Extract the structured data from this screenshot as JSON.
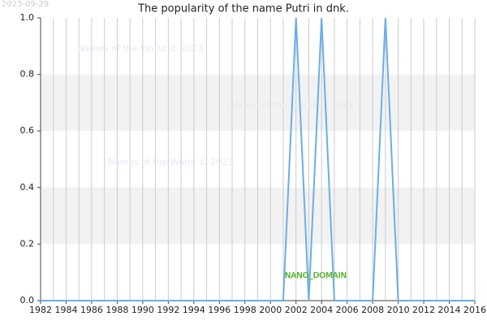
{
  "chart_data": {
    "type": "line",
    "title": "The popularity of the name Putri in dnk.",
    "date_stamp": "2023-09-29",
    "watermarks": [
      "Names of the World © 2023",
      "Names of the World © 2023",
      "Names of the World © 2023"
    ],
    "annotation": "NANO_DOMAIN",
    "x": [
      1982,
      1983,
      1984,
      1985,
      1986,
      1987,
      1988,
      1989,
      1990,
      1991,
      1992,
      1993,
      1994,
      1995,
      1996,
      1997,
      1998,
      1999,
      2000,
      2001,
      2002,
      2003,
      2004,
      2005,
      2006,
      2007,
      2008,
      2009,
      2010,
      2011,
      2012,
      2013,
      2014,
      2015,
      2016
    ],
    "series": [
      {
        "name": "Putri",
        "color": "#6aaee8",
        "values": [
          0,
          0,
          0,
          0,
          0,
          0,
          0,
          0,
          0,
          0,
          0,
          0,
          0,
          0,
          0,
          0,
          0,
          0,
          0,
          0,
          1,
          0,
          1,
          0,
          0,
          0,
          0,
          1,
          0,
          0,
          0,
          0,
          0,
          0,
          0
        ]
      }
    ],
    "xlim": [
      1982,
      2016
    ],
    "xticks": [
      1982,
      1984,
      1986,
      1988,
      1990,
      1992,
      1994,
      1996,
      1998,
      2000,
      2002,
      2004,
      2006,
      2008,
      2010,
      2012,
      2014,
      2016
    ],
    "ylim": [
      0,
      1
    ],
    "yticks": [
      {
        "value": 0,
        "label": "0.0"
      },
      {
        "value": 0.2,
        "label": "0.2"
      },
      {
        "value": 0.4,
        "label": "0.4"
      },
      {
        "value": 0.6,
        "label": "0.6"
      },
      {
        "value": 0.8,
        "label": "0.8"
      },
      {
        "value": 1,
        "label": "1.0"
      }
    ],
    "grid": true,
    "alternate_bands": true,
    "legend": false
  }
}
